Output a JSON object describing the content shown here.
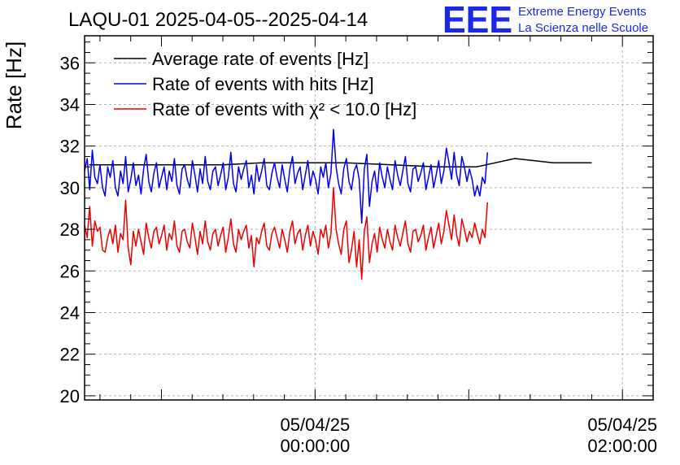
{
  "chart_data": {
    "type": "line",
    "title": "LAQU-01 2025-04-05--2025-04-14",
    "ylabel": "Rate [Hz]",
    "xlabel": "",
    "ylim": [
      19.8,
      37.3
    ],
    "yticks": [
      20,
      22,
      24,
      26,
      28,
      30,
      32,
      34,
      36
    ],
    "ytick_labels": [
      "20",
      "22",
      "24",
      "26",
      "28",
      "30",
      "32",
      "34",
      "36"
    ],
    "xlim_hours": [
      -1.5,
      2.2
    ],
    "xticks_hours": [
      0,
      2
    ],
    "xtick_labels": [
      {
        "date": "05/04/25",
        "time": "00:00:00"
      },
      {
        "date": "05/04/25",
        "time": "02:00:00"
      }
    ],
    "grid": true,
    "legend_position": "top-left",
    "series": [
      {
        "name": "Average rate of events [Hz]",
        "color": "#000000",
        "x": [
          -1.47,
          -1.2,
          -0.9,
          -0.6,
          -0.35,
          -0.05,
          0.2,
          0.5,
          0.8,
          1.05,
          1.3,
          1.55,
          1.8
        ],
        "values": [
          31.1,
          31.1,
          31.1,
          31.1,
          31.2,
          31.2,
          31.2,
          31.1,
          31.0,
          31.0,
          31.4,
          31.2,
          31.2
        ]
      },
      {
        "name": "Rate of events with hits [Hz]",
        "color": "#0000ee",
        "x_start": -1.5,
        "x_step": 0.0167,
        "values": [
          30.8,
          31.4,
          29.9,
          31.8,
          30.5,
          30.2,
          31.1,
          30.0,
          29.6,
          31.0,
          30.5,
          31.3,
          30.0,
          29.6,
          30.8,
          30.2,
          31.5,
          29.8,
          30.4,
          31.2,
          30.1,
          30.6,
          29.7,
          30.9,
          31.6,
          30.3,
          29.8,
          30.7,
          31.2,
          30.0,
          30.5,
          31.0,
          29.9,
          30.8,
          30.3,
          31.4,
          30.1,
          29.7,
          30.9,
          31.1,
          30.4,
          30.0,
          31.3,
          30.6,
          29.8,
          30.9,
          30.2,
          31.5,
          30.3,
          29.9,
          30.8,
          31.0,
          30.1,
          30.6,
          31.2,
          29.9,
          30.5,
          31.7,
          30.2,
          29.8,
          31.0,
          30.4,
          30.9,
          31.3,
          30.0,
          30.6,
          29.7,
          31.1,
          30.3,
          30.8,
          31.4,
          30.1,
          29.9,
          30.7,
          31.2,
          30.5,
          30.0,
          31.1,
          30.4,
          29.8,
          30.9,
          31.5,
          30.2,
          30.7,
          31.0,
          29.9,
          30.6,
          31.3,
          30.1,
          30.8,
          30.4,
          29.7,
          31.0,
          30.5,
          31.2,
          30.0,
          30.7,
          32.8,
          31.0,
          30.2,
          29.7,
          30.9,
          31.4,
          30.3,
          29.9,
          30.8,
          31.1,
          30.4,
          28.3,
          30.9,
          31.6,
          29.1,
          30.3,
          30.8,
          29.8,
          31.2,
          30.5,
          30.0,
          31.0,
          30.4,
          29.9,
          31.3,
          30.6,
          30.1,
          30.8,
          31.5,
          30.2,
          29.8,
          30.9,
          31.0,
          30.3,
          30.7,
          31.2,
          29.9,
          30.5,
          31.1,
          30.0,
          30.6,
          31.3,
          30.2,
          30.8,
          31.9,
          31.2,
          30.4,
          31.7,
          30.6,
          30.1,
          31.5,
          31.0,
          30.3,
          30.9,
          30.4,
          29.6,
          30.1,
          29.6,
          30.5,
          30.2,
          31.7
        ]
      },
      {
        "name": "Rate of events with χ² < 10.0 [Hz]",
        "color": "#ee0000",
        "x_start": -1.5,
        "x_step": 0.0167,
        "values": [
          28.2,
          27.6,
          29.1,
          27.2,
          28.4,
          27.9,
          28.1,
          27.0,
          26.9,
          27.6,
          28.0,
          27.3,
          28.2,
          26.9,
          27.8,
          27.5,
          29.4,
          27.1,
          26.3,
          27.9,
          27.2,
          28.0,
          27.4,
          26.8,
          28.3,
          27.6,
          27.1,
          27.9,
          28.1,
          27.3,
          27.7,
          28.2,
          27.0,
          27.8,
          27.5,
          28.4,
          27.2,
          26.9,
          27.9,
          28.0,
          27.4,
          27.1,
          28.3,
          27.6,
          26.8,
          27.9,
          27.3,
          28.4,
          27.4,
          27.0,
          27.8,
          28.0,
          27.2,
          27.7,
          28.1,
          26.9,
          27.6,
          28.5,
          27.3,
          26.9,
          28.0,
          27.5,
          27.9,
          28.2,
          27.1,
          27.7,
          26.2,
          27.6,
          27.3,
          27.9,
          28.3,
          27.2,
          27.0,
          27.8,
          28.1,
          27.6,
          27.1,
          28.0,
          27.5,
          26.9,
          27.9,
          28.4,
          27.3,
          27.8,
          28.0,
          27.0,
          27.7,
          28.2,
          27.2,
          27.9,
          27.5,
          26.8,
          28.0,
          27.6,
          28.2,
          27.1,
          27.8,
          30.0,
          28.0,
          27.3,
          26.8,
          28.0,
          28.4,
          26.4,
          27.0,
          27.9,
          26.2,
          27.5,
          25.6,
          27.9,
          28.6,
          26.4,
          27.3,
          27.8,
          26.9,
          28.1,
          27.5,
          27.1,
          28.0,
          27.4,
          27.0,
          28.2,
          27.6,
          27.2,
          27.8,
          28.4,
          27.3,
          26.9,
          27.9,
          28.0,
          27.4,
          27.7,
          28.2,
          27.0,
          27.6,
          28.1,
          27.1,
          27.7,
          28.3,
          27.3,
          27.9,
          28.9,
          28.2,
          27.5,
          28.7,
          27.7,
          27.2,
          28.5,
          28.0,
          27.4,
          27.9,
          27.6,
          28.3,
          27.8,
          27.3,
          28.0,
          27.6,
          29.3
        ]
      }
    ]
  },
  "logo": {
    "text": "EEE",
    "line1": "Extreme Energy Events",
    "line2": "La Scienza nelle Scuole",
    "color": "#1c28e6"
  }
}
